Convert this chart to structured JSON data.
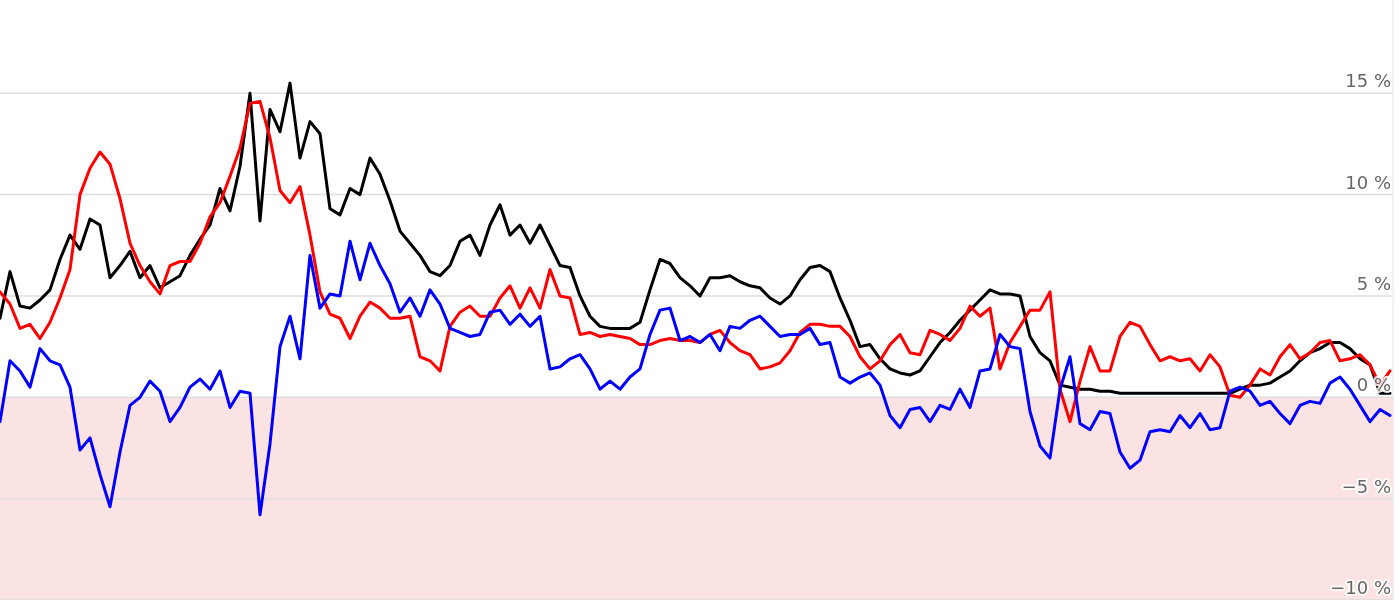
{
  "chart_data": {
    "type": "line",
    "categories": [
      null,
      null,
      null,
      null,
      null,
      null,
      null,
      null,
      null,
      null,
      null,
      null,
      null,
      null,
      null,
      null,
      null,
      null,
      null,
      null,
      null,
      null,
      null,
      null,
      null,
      null,
      null,
      null,
      null,
      null,
      null,
      null,
      null,
      null,
      null,
      null,
      null,
      null,
      null,
      null,
      null,
      null,
      null,
      null,
      null,
      null,
      null,
      null,
      null,
      null,
      null,
      null,
      null,
      null,
      null,
      null,
      null,
      null,
      null,
      null,
      null,
      null,
      null,
      null,
      null,
      null,
      null,
      null,
      null,
      null,
      null,
      null,
      null,
      null,
      null,
      null,
      null,
      null,
      null,
      null,
      null,
      null,
      null,
      null,
      null,
      null,
      null,
      null,
      null,
      null,
      null,
      null,
      null,
      null,
      null,
      null,
      null,
      null,
      null,
      null,
      null,
      null,
      null,
      null,
      null,
      null,
      null,
      null,
      null,
      null,
      null,
      null,
      null,
      null,
      null,
      null,
      null,
      null,
      null,
      null,
      null,
      null,
      null,
      null,
      null,
      null,
      null,
      null,
      null,
      null,
      null,
      null,
      null,
      null,
      null,
      null,
      null,
      null,
      null,
      null
    ],
    "series": [
      {
        "color": "#000000",
        "values": [
          3.9,
          6.2,
          4.5,
          4.4,
          4.8,
          5.3,
          6.8,
          8.0,
          7.3,
          8.8,
          8.5,
          5.9,
          6.5,
          7.2,
          5.9,
          6.5,
          5.4,
          5.7,
          6.0,
          7.0,
          7.8,
          8.5,
          10.3,
          9.2,
          11.4,
          15.0,
          8.7,
          14.2,
          13.1,
          15.5,
          11.8,
          13.6,
          13.0,
          9.3,
          9.0,
          10.3,
          10.0,
          11.8,
          11.0,
          9.7,
          8.2,
          7.6,
          7.0,
          6.2,
          6.0,
          6.5,
          7.7,
          8.0,
          7.0,
          8.5,
          9.5,
          8.0,
          8.5,
          7.6,
          8.5,
          7.5,
          6.5,
          6.4,
          5.0,
          4.0,
          3.5,
          3.4,
          3.4,
          3.4,
          3.7,
          5.3,
          6.8,
          6.6,
          5.9,
          5.5,
          5.0,
          5.9,
          5.9,
          6.0,
          5.7,
          5.5,
          5.4,
          4.9,
          4.6,
          5.0,
          5.8,
          6.4,
          6.5,
          6.2,
          4.9,
          3.8,
          2.5,
          2.6,
          1.9,
          1.4,
          1.2,
          1.1,
          1.3,
          2.0,
          2.7,
          3.2,
          3.8,
          4.3,
          4.8,
          5.3,
          5.1,
          5.1,
          5.0,
          3.0,
          2.2,
          1.8,
          0.6,
          0.5,
          0.4,
          0.4,
          0.3,
          0.3,
          0.2,
          0.2,
          0.2,
          0.2,
          0.2,
          0.2,
          0.2,
          0.2,
          0.2,
          0.2,
          0.2,
          0.2,
          0.4,
          0.6,
          0.6,
          0.7,
          1.0,
          1.3,
          1.8,
          2.2,
          2.4,
          2.7,
          2.7,
          2.4,
          1.9,
          1.6,
          0.2,
          0.2
        ]
      },
      {
        "color": "#ff0000",
        "values": [
          5.2,
          4.6,
          3.4,
          3.6,
          2.9,
          3.7,
          4.9,
          6.3,
          10.0,
          11.3,
          12.1,
          11.5,
          9.8,
          7.6,
          6.5,
          5.7,
          5.1,
          6.5,
          6.7,
          6.7,
          7.6,
          8.9,
          9.6,
          10.9,
          12.3,
          14.5,
          14.6,
          12.8,
          10.2,
          9.6,
          10.4,
          8.0,
          5.2,
          4.1,
          3.9,
          2.9,
          4.0,
          4.7,
          4.4,
          3.9,
          3.9,
          4.0,
          2.0,
          1.8,
          1.3,
          3.5,
          4.2,
          4.5,
          4.0,
          4.0,
          4.9,
          5.5,
          4.4,
          5.4,
          4.4,
          6.3,
          5.0,
          4.9,
          3.1,
          3.2,
          3.0,
          3.1,
          3.0,
          2.9,
          2.6,
          2.6,
          2.8,
          2.9,
          2.8,
          2.8,
          2.7,
          3.1,
          3.3,
          2.7,
          2.3,
          2.1,
          1.4,
          1.5,
          1.7,
          2.3,
          3.2,
          3.6,
          3.6,
          3.5,
          3.5,
          3.0,
          2.0,
          1.4,
          1.8,
          2.6,
          3.1,
          2.2,
          2.1,
          3.3,
          3.1,
          2.8,
          3.4,
          4.5,
          4.0,
          4.4,
          1.4,
          2.7,
          3.5,
          4.3,
          4.3,
          5.2,
          0.4,
          -1.2,
          0.8,
          2.5,
          1.3,
          1.3,
          3.0,
          3.7,
          3.5,
          2.6,
          1.8,
          2.0,
          1.8,
          1.9,
          1.3,
          2.1,
          1.5,
          0.1,
          0.0,
          0.6,
          1.4,
          1.1,
          2.0,
          2.6,
          1.9,
          2.2,
          2.7,
          2.8,
          1.8,
          1.9,
          2.1,
          1.6,
          0.6,
          1.3
        ]
      },
      {
        "color": "#0000ff",
        "values": [
          -1.2,
          1.8,
          1.3,
          0.5,
          2.4,
          1.8,
          1.6,
          0.5,
          -2.6,
          -2.0,
          -3.8,
          -5.4,
          -2.7,
          -0.4,
          0.0,
          0.8,
          0.3,
          -1.2,
          -0.5,
          0.5,
          0.9,
          0.4,
          1.3,
          -0.5,
          0.3,
          0.2,
          -5.8,
          -2.3,
          2.5,
          4.0,
          1.9,
          7.0,
          4.4,
          5.1,
          5.0,
          7.7,
          5.8,
          7.6,
          6.5,
          5.6,
          4.2,
          4.9,
          4.0,
          5.3,
          4.6,
          3.4,
          3.2,
          3.0,
          3.1,
          4.2,
          4.3,
          3.6,
          4.1,
          3.5,
          4.0,
          1.4,
          1.5,
          1.9,
          2.1,
          1.4,
          0.4,
          0.8,
          0.4,
          1.0,
          1.4,
          3.1,
          4.3,
          4.4,
          2.8,
          3.0,
          2.7,
          3.1,
          2.3,
          3.5,
          3.4,
          3.8,
          4.0,
          3.5,
          3.0,
          3.1,
          3.1,
          3.4,
          2.6,
          2.7,
          1.0,
          0.7,
          1.0,
          1.2,
          0.6,
          -0.9,
          -1.5,
          -0.6,
          -0.5,
          -1.2,
          -0.4,
          -0.6,
          0.4,
          -0.5,
          1.3,
          1.4,
          3.1,
          2.5,
          2.4,
          -0.7,
          -2.4,
          -3.0,
          0.4,
          2.0,
          -1.3,
          -1.6,
          -0.7,
          -0.8,
          -2.7,
          -3.5,
          -3.1,
          -1.7,
          -1.6,
          -1.7,
          -0.9,
          -1.5,
          -0.8,
          -1.6,
          -1.5,
          0.3,
          0.5,
          0.3,
          -0.4,
          -0.2,
          -0.8,
          -1.3,
          -0.4,
          -0.2,
          -0.3,
          0.7,
          1.0,
          0.4,
          -0.4,
          -1.2,
          -0.6,
          -0.9
        ]
      }
    ],
    "ylim": [
      -10,
      19.6
    ],
    "yticks": [
      {
        "value": 15,
        "label": "15 %"
      },
      {
        "value": 10,
        "label": "10 %"
      },
      {
        "value": 5,
        "label": "5 %"
      },
      {
        "value": 0,
        "label": "0 %"
      },
      {
        "value": -5,
        "label": "−5 %"
      },
      {
        "value": -10,
        "label": "−10 %"
      }
    ],
    "tick_labels": "y",
    "grid": "y",
    "bands": [
      {
        "axis": "y",
        "from": -10,
        "to": 0,
        "color": "#fce3e3"
      }
    ],
    "line_style": "solid",
    "marker": "none"
  }
}
